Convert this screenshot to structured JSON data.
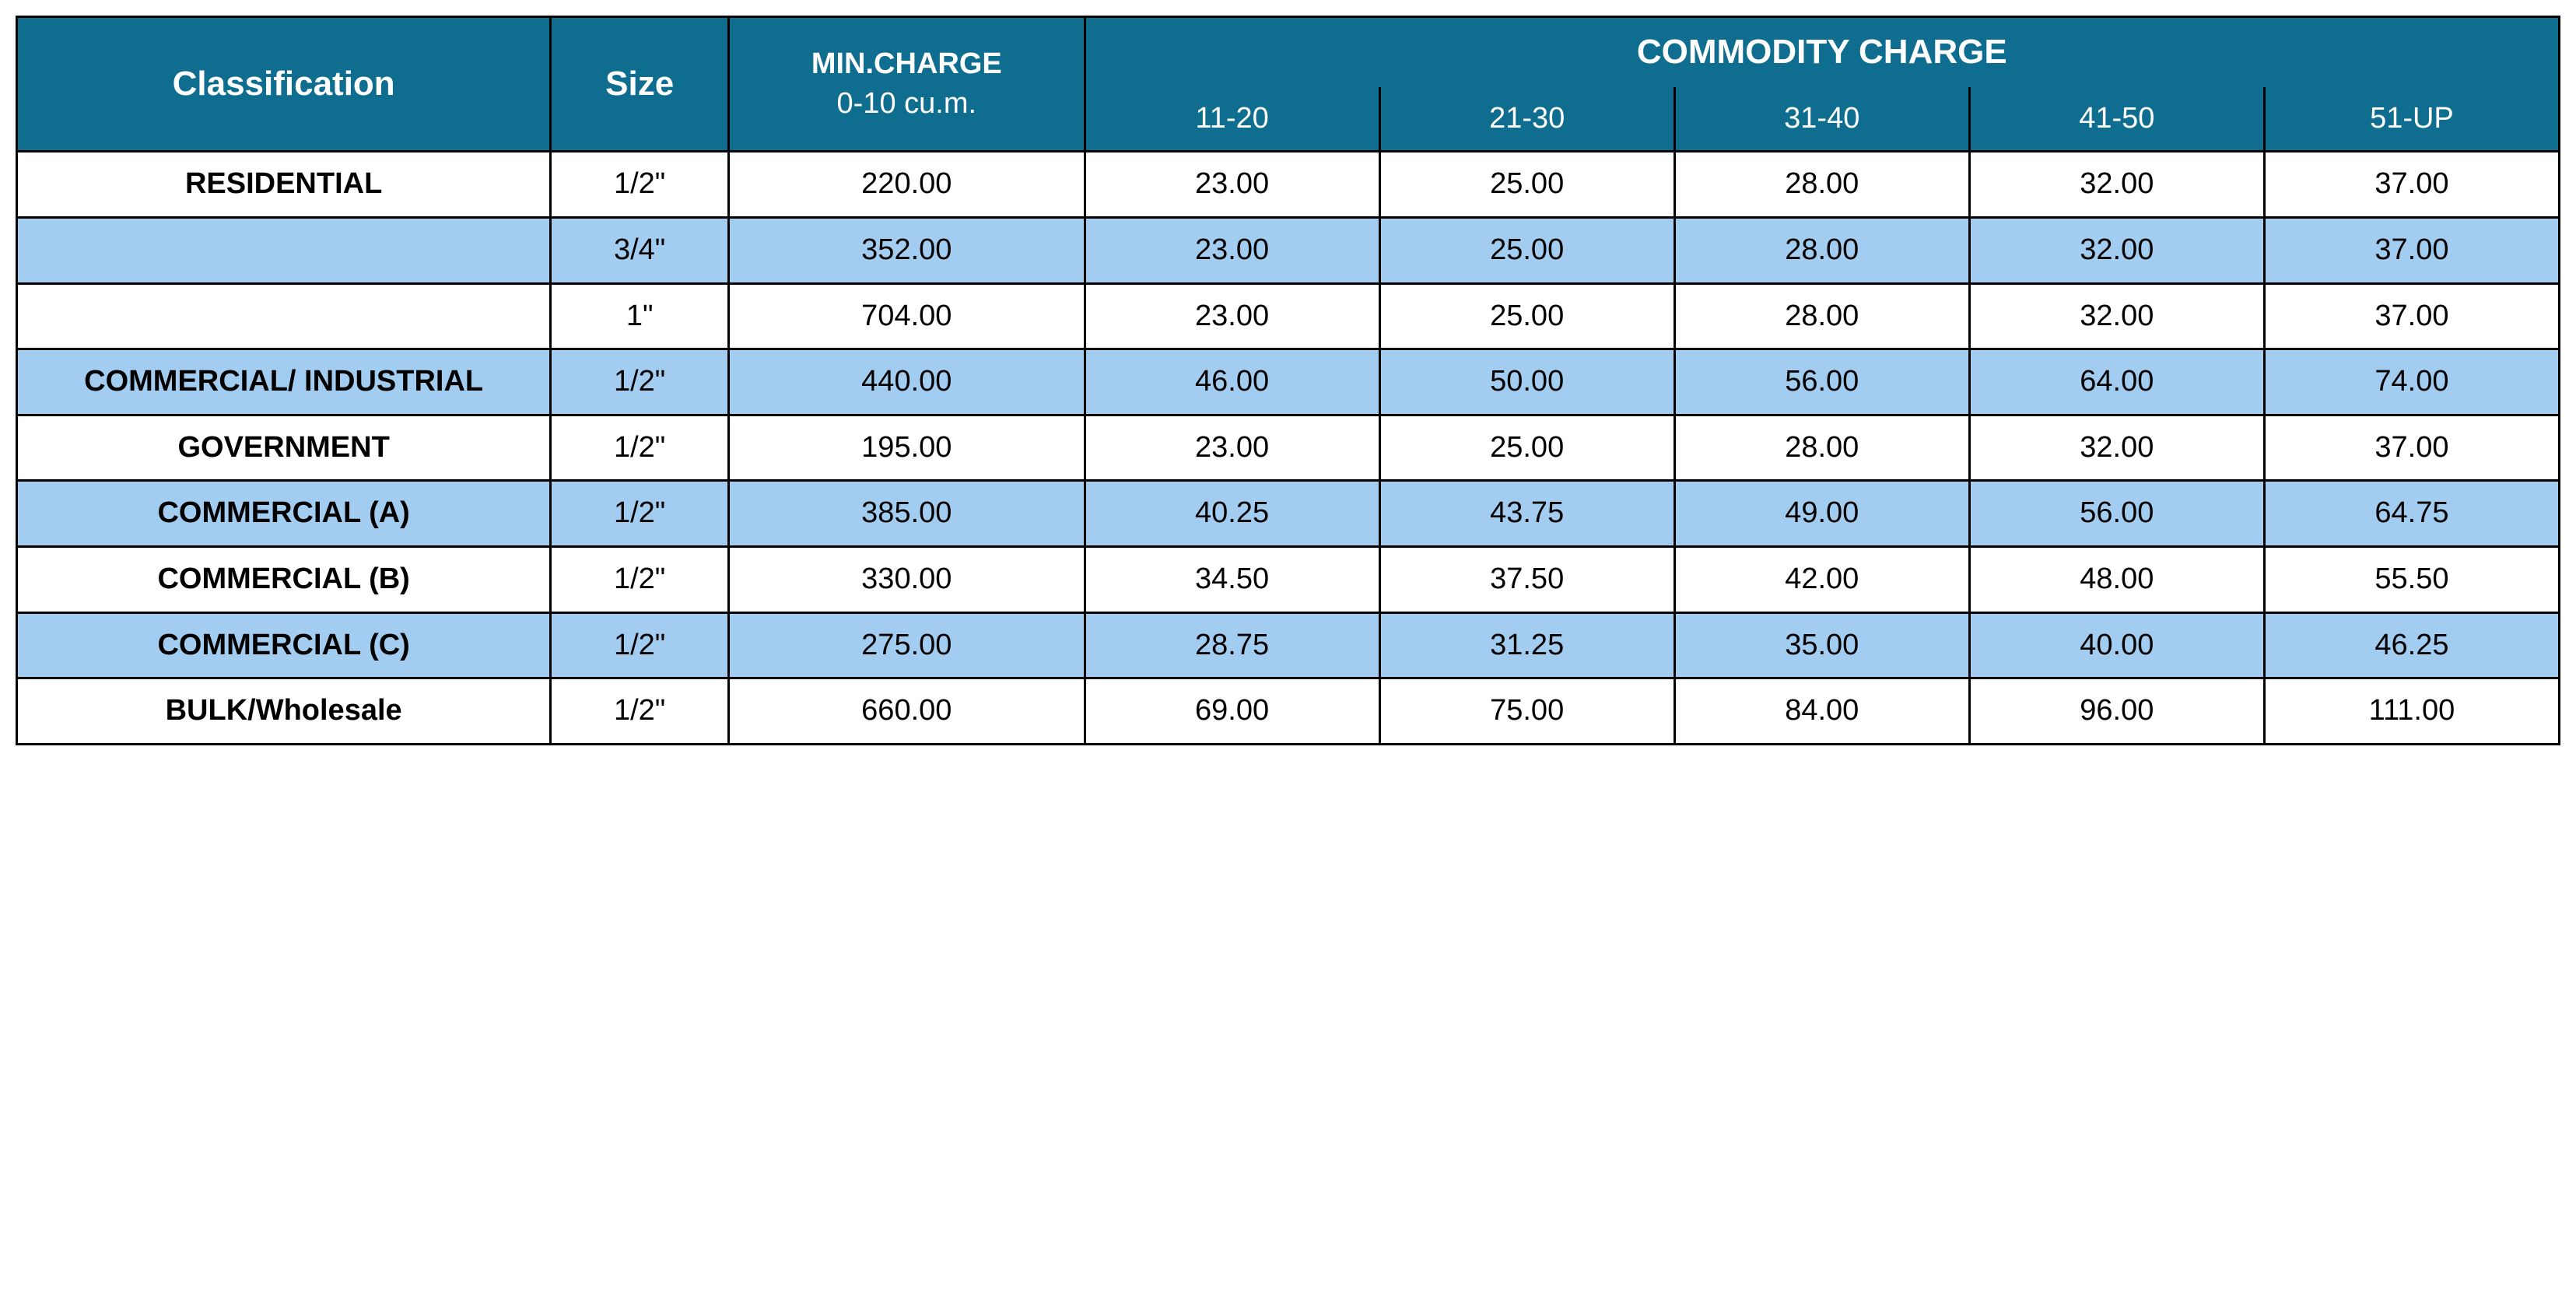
{
  "table": {
    "colors": {
      "header_bg": "#0f6e90",
      "header_fg": "#ffffff",
      "stripe_bg": "#a3cdf0",
      "row_bg": "#ffffff",
      "border": "#000000",
      "text": "#000000"
    },
    "font": {
      "family": "Arial",
      "header_size_pt": 33,
      "header_big_size_pt": 36,
      "body_size_pt": 29,
      "header_weight": "bold",
      "classification_weight": "bold"
    },
    "header": {
      "classification": "Classification",
      "size": "Size",
      "min_charge_line1": "MIN.CHARGE",
      "min_charge_line2": "0-10 cu.m.",
      "commodity_title": "COMMODITY CHARGE",
      "commodity_ranges": [
        "11-20",
        "21-30",
        "31-40",
        "41-50",
        "51-UP"
      ]
    },
    "column_widths_pct": {
      "classification": 21,
      "size": 7,
      "min_charge": 14,
      "commodity_each": 11.6
    },
    "rows": [
      {
        "classification": "RESIDENTIAL",
        "size": "1/2\"",
        "min": "220.00",
        "c": [
          "23.00",
          "25.00",
          "28.00",
          "32.00",
          "37.00"
        ],
        "stripe": false
      },
      {
        "classification": "",
        "size": "3/4\"",
        "min": "352.00",
        "c": [
          "23.00",
          "25.00",
          "28.00",
          "32.00",
          "37.00"
        ],
        "stripe": true
      },
      {
        "classification": "",
        "size": "1\"",
        "min": "704.00",
        "c": [
          "23.00",
          "25.00",
          "28.00",
          "32.00",
          "37.00"
        ],
        "stripe": false
      },
      {
        "classification": "COMMERCIAL/ INDUSTRIAL",
        "size": "1/2\"",
        "min": "440.00",
        "c": [
          "46.00",
          "50.00",
          "56.00",
          "64.00",
          "74.00"
        ],
        "stripe": true
      },
      {
        "classification": "GOVERNMENT",
        "size": "1/2\"",
        "min": "195.00",
        "c": [
          "23.00",
          "25.00",
          "28.00",
          "32.00",
          "37.00"
        ],
        "stripe": false
      },
      {
        "classification": "COMMERCIAL (A)",
        "size": "1/2\"",
        "min": "385.00",
        "c": [
          "40.25",
          "43.75",
          "49.00",
          "56.00",
          "64.75"
        ],
        "stripe": true
      },
      {
        "classification": "COMMERCIAL (B)",
        "size": "1/2\"",
        "min": "330.00",
        "c": [
          "34.50",
          "37.50",
          "42.00",
          "48.00",
          "55.50"
        ],
        "stripe": false
      },
      {
        "classification": "COMMERCIAL (C)",
        "size": "1/2\"",
        "min": "275.00",
        "c": [
          "28.75",
          "31.25",
          "35.00",
          "40.00",
          "46.25"
        ],
        "stripe": true
      },
      {
        "classification": "BULK/Wholesale",
        "size": "1/2\"",
        "min": "660.00",
        "c": [
          "69.00",
          "75.00",
          "84.00",
          "96.00",
          "111.00"
        ],
        "stripe": false
      }
    ]
  }
}
